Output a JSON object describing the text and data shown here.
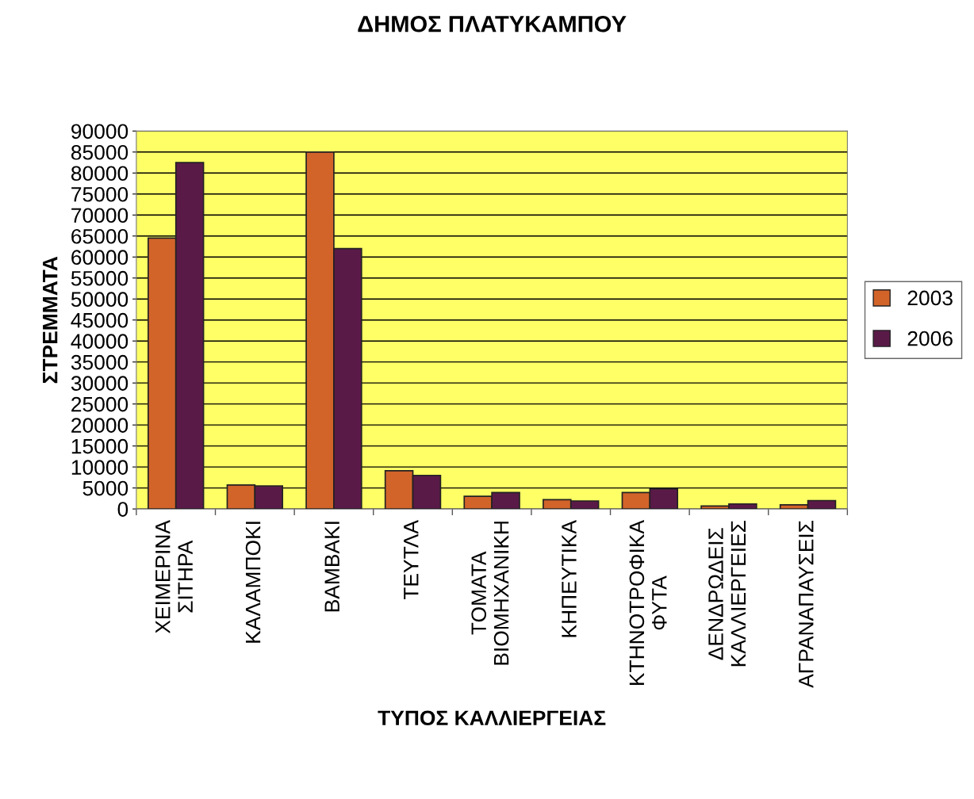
{
  "chart_data": {
    "type": "bar",
    "title": "ΔΗΜΟΣ ΠΛΑΤΥΚΑΜΠΟΥ",
    "xlabel": "ΤΥΠΟΣ ΚΑΛΛΙΕΡΓΕΙΑΣ",
    "ylabel": "ΣΤΡΕΜΜΑΤΑ",
    "categories": [
      "ΧΕΙΜΕΡΙΝΑ\nΣΙΤΗΡΑ",
      "ΚΑΛΑΜΠΟΚΙ",
      "ΒΑΜΒΑΚΙ",
      "ΤΕΥΤΛΑ",
      "ΤΟΜΑΤΑ\nΒΙΟΜΗΧΑΝΙΚΗ",
      "ΚΗΠΕΥΤΙΚΑ",
      "ΚΤΗΝΟΤΡΟΦΙΚΑ\nΦΥΤΑ",
      "ΔΕΝΔΡΩΔΕΙΣ\nΚΑΛΛΙΕΡΓΕΙΕΣ",
      "ΑΓΡΑΝΑΠΑΥΣΕΙΣ"
    ],
    "series": [
      {
        "name": "2003",
        "color": "#d2642a",
        "values": [
          64500,
          5700,
          85000,
          9100,
          3000,
          2200,
          3900,
          700,
          1000
        ]
      },
      {
        "name": "2006",
        "color": "#5a1a48",
        "values": [
          82500,
          5500,
          62000,
          8000,
          3900,
          1900,
          4800,
          1200,
          2000
        ]
      }
    ],
    "ylim": [
      0,
      90000
    ],
    "yticks": [
      0,
      5000,
      10000,
      15000,
      20000,
      25000,
      30000,
      35000,
      40000,
      45000,
      50000,
      55000,
      60000,
      65000,
      70000,
      75000,
      80000,
      85000,
      90000
    ],
    "grid": "y",
    "legend": "right"
  }
}
